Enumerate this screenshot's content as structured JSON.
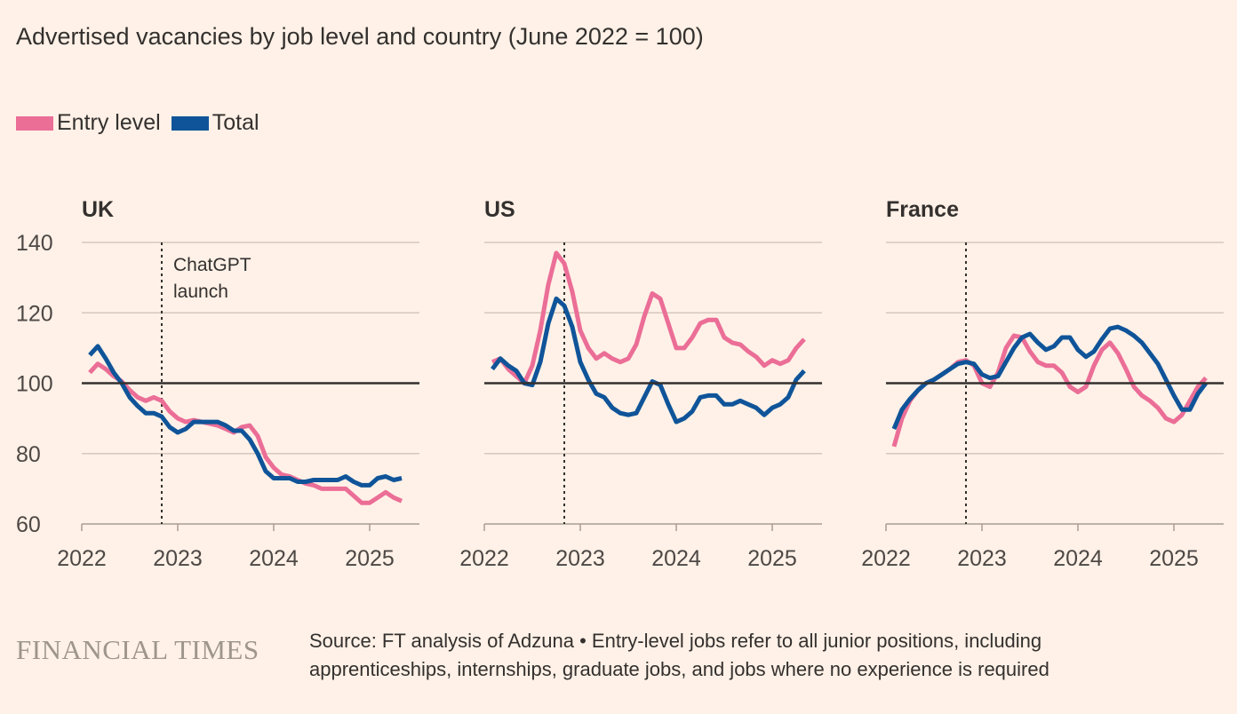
{
  "chart_data": [
    {
      "type": "line",
      "title": "UK",
      "x_start": "2022-02",
      "x_step": "month",
      "xticks": [
        "2022",
        "2023",
        "2024",
        "2025"
      ],
      "yticks": [
        60,
        80,
        100,
        120,
        140
      ],
      "ylim": [
        60,
        140
      ],
      "reference_line": 100,
      "annotation": {
        "date": "2022-11",
        "lines": [
          "ChatGPT",
          "launch"
        ]
      },
      "series": [
        {
          "name": "Entry level",
          "values": [
            103,
            105.5,
            104,
            102,
            100.5,
            98,
            96,
            95,
            96,
            95,
            92,
            90,
            89,
            89.5,
            89,
            88.5,
            88,
            87,
            86,
            87.5,
            88,
            85,
            79,
            76,
            74,
            73.5,
            72.5,
            71.5,
            71,
            70,
            70,
            70,
            70,
            68,
            66,
            66,
            67.5,
            69,
            67.5,
            66.5
          ]
        },
        {
          "name": "Total",
          "values": [
            108,
            110.5,
            107,
            103,
            100,
            96,
            93.5,
            91.5,
            91.5,
            90.5,
            87.5,
            86,
            87,
            89,
            89,
            89,
            89,
            88,
            86.5,
            86.5,
            84,
            80,
            75,
            73,
            73,
            73,
            72,
            72,
            72.5,
            72.5,
            72.5,
            72.5,
            73.5,
            72,
            71,
            71,
            73,
            73.5,
            72.5,
            73
          ]
        }
      ]
    },
    {
      "type": "line",
      "title": "US",
      "x_start": "2022-02",
      "x_step": "month",
      "xticks": [
        "2022",
        "2023",
        "2024",
        "2025"
      ],
      "ylim": [
        60,
        140
      ],
      "reference_line": 100,
      "annotation_date": "2022-11",
      "series": [
        {
          "name": "Entry level",
          "values": [
            106,
            107,
            104,
            102,
            100,
            105,
            115,
            128,
            137,
            134,
            126,
            115,
            110,
            107,
            108.5,
            107,
            106,
            107,
            111,
            119,
            125.5,
            124,
            117,
            110,
            110,
            113,
            117,
            118,
            118,
            113,
            111.5,
            111,
            109,
            107.5,
            105,
            106.5,
            105.5,
            106.5,
            110,
            112.5
          ]
        },
        {
          "name": "Total",
          "values": [
            104,
            107,
            105,
            103.5,
            100,
            99.5,
            106,
            117,
            124,
            122,
            116,
            106,
            101,
            97,
            96,
            93,
            91.5,
            91,
            91.5,
            96,
            100.5,
            99.5,
            94,
            89,
            90,
            92,
            96,
            96.5,
            96.5,
            94,
            94,
            95,
            94,
            93,
            91,
            93,
            94,
            96,
            101,
            103.5
          ]
        }
      ]
    },
    {
      "type": "line",
      "title": "France",
      "x_start": "2022-02",
      "x_step": "month",
      "xticks": [
        "2022",
        "2023",
        "2024",
        "2025"
      ],
      "ylim": [
        60,
        140
      ],
      "reference_line": 100,
      "annotation_date": "2022-11",
      "series": [
        {
          "name": "Entry level",
          "values": [
            82,
            90,
            95,
            98,
            100,
            101,
            102.5,
            104,
            106,
            106.5,
            105,
            100,
            99,
            103,
            110,
            113.5,
            113,
            109,
            106,
            105,
            105,
            103,
            99,
            97.5,
            99,
            105,
            109.5,
            111.5,
            108.5,
            104,
            99,
            96.5,
            95,
            93,
            90,
            89,
            91,
            95,
            99,
            101.5
          ]
        },
        {
          "name": "Total",
          "values": [
            87,
            92.5,
            95.5,
            98,
            100,
            101,
            102.5,
            104,
            105.5,
            106,
            105.5,
            102.5,
            101.5,
            102,
            106,
            110,
            113,
            114,
            111.5,
            109.5,
            110.5,
            113,
            113,
            109.5,
            107.5,
            109,
            112.5,
            115.5,
            116,
            115,
            113.5,
            111.5,
            108.5,
            105.5,
            101,
            96.5,
            92.5,
            92.5,
            97,
            100
          ]
        }
      ]
    }
  ],
  "header": {
    "title": "Advertised vacancies by job level and country (June 2022 = 100)"
  },
  "legend": [
    {
      "label": "Entry level",
      "color": "#eb6e97"
    },
    {
      "label": "Total",
      "color": "#0f5499"
    }
  ],
  "footer": {
    "logo": "FINANCIAL TIMES",
    "source_line1": "Source: FT analysis of Adzuna • Entry-level jobs refer to all junior positions, including",
    "source_line2": "apprenticeships, internships, graduate jobs, and jobs where no experience is required"
  }
}
